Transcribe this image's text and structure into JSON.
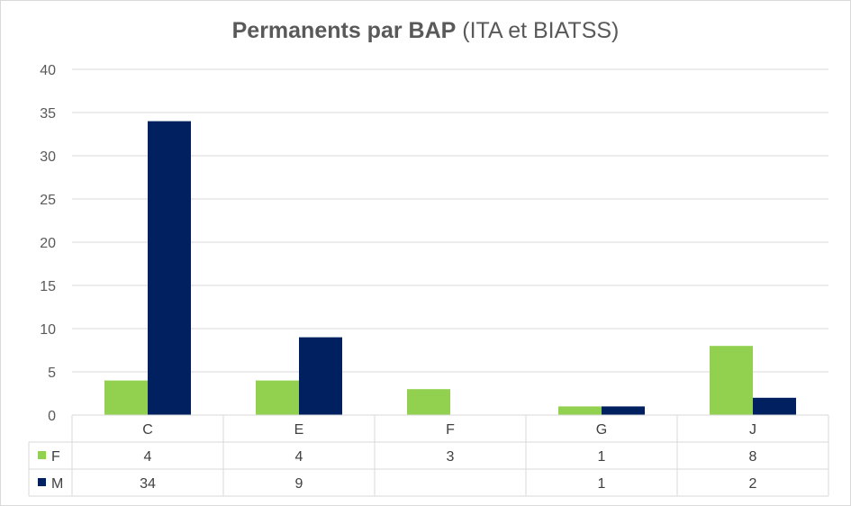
{
  "chart_data": {
    "type": "bar",
    "title_bold": "Permanents par BAP",
    "title_rest": "(ITA et BIATSS)",
    "categories": [
      "C",
      "E",
      "F",
      "G",
      "J"
    ],
    "series": [
      {
        "name": "F",
        "color": "#92d050",
        "values": [
          4,
          4,
          3,
          1,
          8
        ],
        "table_values": [
          "4",
          "4",
          "3",
          "1",
          "8"
        ]
      },
      {
        "name": "M",
        "color": "#002060",
        "values": [
          34,
          9,
          0,
          1,
          2
        ],
        "table_values": [
          "34",
          "9",
          "",
          "1",
          "2"
        ]
      }
    ],
    "yticks": [
      "0",
      "5",
      "10",
      "15",
      "20",
      "25",
      "30",
      "35",
      "40"
    ],
    "ylim": [
      0,
      40
    ],
    "grid": true,
    "legend": "data-table"
  }
}
